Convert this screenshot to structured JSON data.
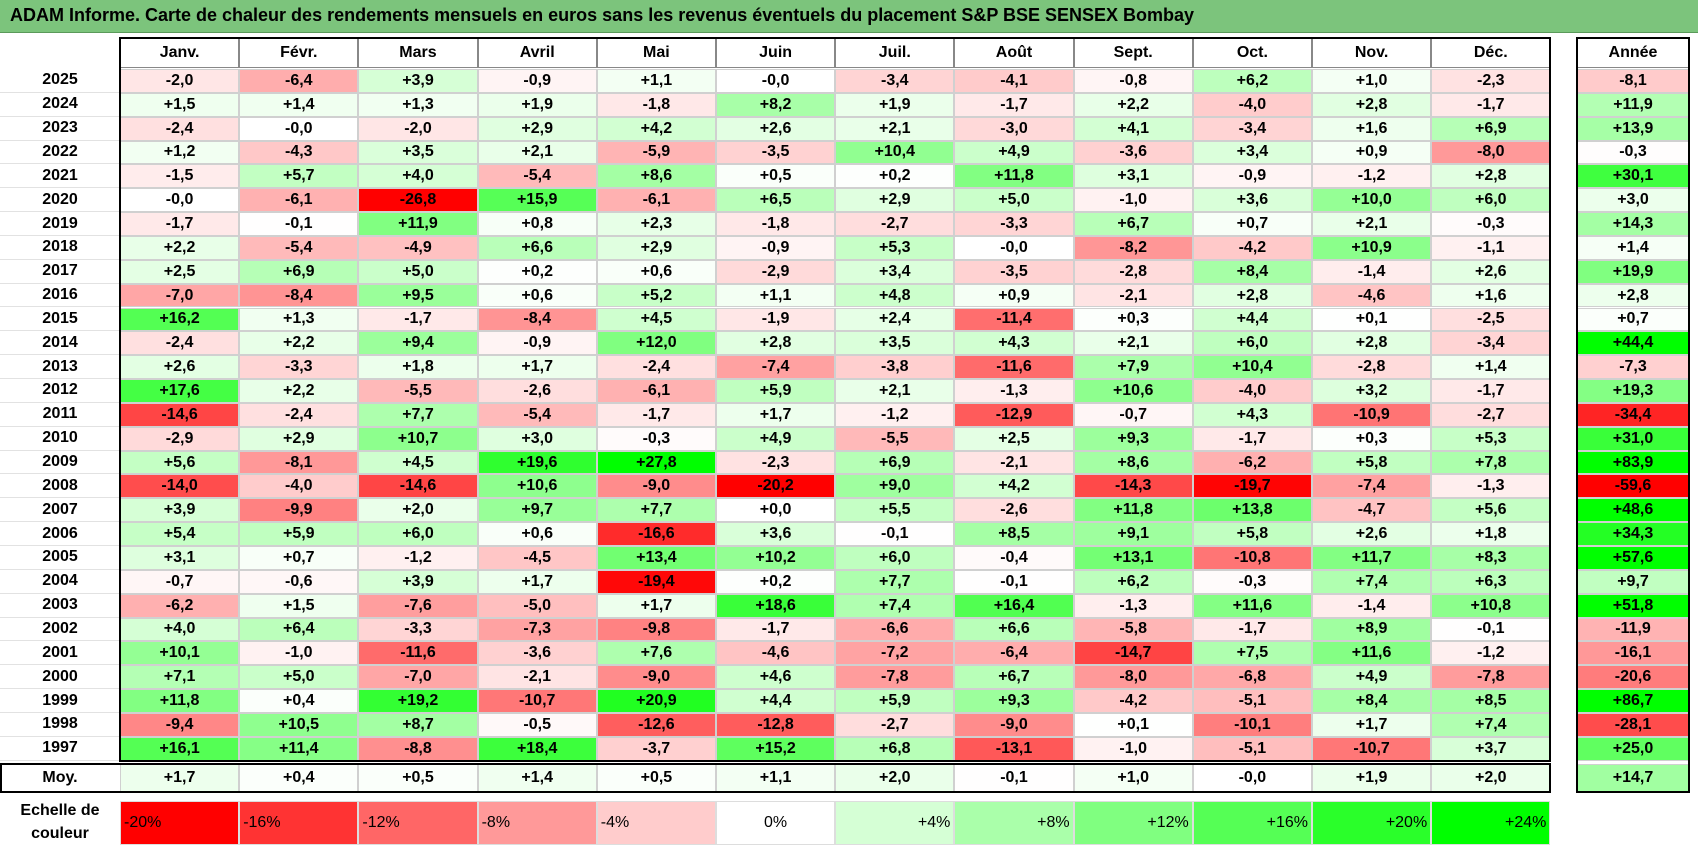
{
  "title": "ADAM Informe. Carte de chaleur des rendements mensuels en euros sans les revenus éventuels du placement S&P BSE SENSEX Bombay",
  "colors": {
    "title_bg": "#7cc47c",
    "negative": "#ff0000",
    "neutral": "#ffffff",
    "positive": "#00ff00"
  },
  "chart_data": {
    "type": "heatmap",
    "title": "ADAM Informe. Carte de chaleur des rendements mensuels en euros sans les revenus éventuels du placement S&P BSE SENSEX Bombay",
    "columns": [
      "Janv.",
      "Févr.",
      "Mars",
      "Avril",
      "Mai",
      "Juin",
      "Juil.",
      "Août",
      "Sept.",
      "Oct.",
      "Nov.",
      "Déc."
    ],
    "year_header": "Année",
    "rows": [
      {
        "year": "2025",
        "months": [
          "-2,0",
          "-6,4",
          "+3,9",
          "-0,9",
          "+1,1",
          "-0,0",
          "-3,4",
          "-4,1",
          "-0,8",
          "+6,2",
          "+1,0",
          "-2,3"
        ],
        "annual": "-8,1"
      },
      {
        "year": "2024",
        "months": [
          "+1,5",
          "+1,4",
          "+1,3",
          "+1,9",
          "-1,8",
          "+8,2",
          "+1,9",
          "-1,7",
          "+2,2",
          "-4,0",
          "+2,8",
          "-1,7"
        ],
        "annual": "+11,9"
      },
      {
        "year": "2023",
        "months": [
          "-2,4",
          "-0,0",
          "-2,0",
          "+2,9",
          "+4,2",
          "+2,6",
          "+2,1",
          "-3,0",
          "+4,1",
          "-3,4",
          "+1,6",
          "+6,9"
        ],
        "annual": "+13,9"
      },
      {
        "year": "2022",
        "months": [
          "+1,2",
          "-4,3",
          "+3,5",
          "+2,1",
          "-5,9",
          "-3,5",
          "+10,4",
          "+4,9",
          "-3,6",
          "+3,4",
          "+0,9",
          "-8,0"
        ],
        "annual": "-0,3"
      },
      {
        "year": "2021",
        "months": [
          "-1,5",
          "+5,7",
          "+4,0",
          "-5,4",
          "+8,6",
          "+0,5",
          "+0,2",
          "+11,8",
          "+3,1",
          "-0,9",
          "-1,2",
          "+2,8"
        ],
        "annual": "+30,1"
      },
      {
        "year": "2020",
        "months": [
          "-0,0",
          "-6,1",
          "-26,8",
          "+15,9",
          "-6,1",
          "+6,5",
          "+2,9",
          "+5,0",
          "-1,0",
          "+3,6",
          "+10,0",
          "+6,0"
        ],
        "annual": "+3,0"
      },
      {
        "year": "2019",
        "months": [
          "-1,7",
          "-0,1",
          "+11,9",
          "+0,8",
          "+2,3",
          "-1,8",
          "-2,7",
          "-3,3",
          "+6,7",
          "+0,7",
          "+2,1",
          "-0,3"
        ],
        "annual": "+14,3"
      },
      {
        "year": "2018",
        "months": [
          "+2,2",
          "-5,4",
          "-4,9",
          "+6,6",
          "+2,9",
          "-0,9",
          "+5,3",
          "-0,0",
          "-8,2",
          "-4,2",
          "+10,9",
          "-1,1"
        ],
        "annual": "+1,4"
      },
      {
        "year": "2017",
        "months": [
          "+2,5",
          "+6,9",
          "+5,0",
          "+0,2",
          "+0,6",
          "-2,9",
          "+3,4",
          "-3,5",
          "-2,8",
          "+8,4",
          "-1,4",
          "+2,6"
        ],
        "annual": "+19,9"
      },
      {
        "year": "2016",
        "months": [
          "-7,0",
          "-8,4",
          "+9,5",
          "+0,6",
          "+5,2",
          "+1,1",
          "+4,8",
          "+0,9",
          "-2,1",
          "+2,8",
          "-4,6",
          "+1,6"
        ],
        "annual": "+2,8"
      },
      {
        "year": "2015",
        "months": [
          "+16,2",
          "+1,3",
          "-1,7",
          "-8,4",
          "+4,5",
          "-1,9",
          "+2,4",
          "-11,4",
          "+0,3",
          "+4,4",
          "+0,1",
          "-2,5"
        ],
        "annual": "+0,7"
      },
      {
        "year": "2014",
        "months": [
          "-2,4",
          "+2,2",
          "+9,4",
          "-0,9",
          "+12,0",
          "+2,8",
          "+3,5",
          "+4,3",
          "+2,1",
          "+6,0",
          "+2,8",
          "-3,4"
        ],
        "annual": "+44,4"
      },
      {
        "year": "2013",
        "months": [
          "+2,6",
          "-3,3",
          "+1,8",
          "+1,7",
          "-2,4",
          "-7,4",
          "-3,8",
          "-11,6",
          "+7,9",
          "+10,4",
          "-2,8",
          "+1,4"
        ],
        "annual": "-7,3"
      },
      {
        "year": "2012",
        "months": [
          "+17,6",
          "+2,2",
          "-5,5",
          "-2,6",
          "-6,1",
          "+5,9",
          "+2,1",
          "-1,3",
          "+10,6",
          "-4,0",
          "+3,2",
          "-1,7"
        ],
        "annual": "+19,3"
      },
      {
        "year": "2011",
        "months": [
          "-14,6",
          "-2,4",
          "+7,7",
          "-5,4",
          "-1,7",
          "+1,7",
          "-1,2",
          "-12,9",
          "-0,7",
          "+4,3",
          "-10,9",
          "-2,7"
        ],
        "annual": "-34,4"
      },
      {
        "year": "2010",
        "months": [
          "-2,9",
          "+2,9",
          "+10,7",
          "+3,0",
          "-0,3",
          "+4,9",
          "-5,5",
          "+2,5",
          "+9,3",
          "-1,7",
          "+0,3",
          "+5,3"
        ],
        "annual": "+31,0"
      },
      {
        "year": "2009",
        "months": [
          "+5,6",
          "-8,1",
          "+4,5",
          "+19,6",
          "+27,8",
          "-2,3",
          "+6,9",
          "-2,1",
          "+8,6",
          "-6,2",
          "+5,8",
          "+7,8"
        ],
        "annual": "+83,9"
      },
      {
        "year": "2008",
        "months": [
          "-14,0",
          "-4,0",
          "-14,6",
          "+10,6",
          "-9,0",
          "-20,2",
          "+9,0",
          "+4,2",
          "-14,3",
          "-19,7",
          "-7,4",
          "-1,3"
        ],
        "annual": "-59,6"
      },
      {
        "year": "2007",
        "months": [
          "+3,9",
          "-9,9",
          "+2,0",
          "+9,7",
          "+7,7",
          "+0,0",
          "+5,5",
          "-2,6",
          "+11,8",
          "+13,8",
          "-4,7",
          "+5,6"
        ],
        "annual": "+48,6"
      },
      {
        "year": "2006",
        "months": [
          "+5,4",
          "+5,9",
          "+6,0",
          "+0,6",
          "-16,6",
          "+3,6",
          "-0,1",
          "+8,5",
          "+9,1",
          "+5,8",
          "+2,6",
          "+1,8"
        ],
        "annual": "+34,3"
      },
      {
        "year": "2005",
        "months": [
          "+3,1",
          "+0,7",
          "-1,2",
          "-4,5",
          "+13,4",
          "+10,2",
          "+6,0",
          "-0,4",
          "+13,1",
          "-10,8",
          "+11,7",
          "+8,3"
        ],
        "annual": "+57,6"
      },
      {
        "year": "2004",
        "months": [
          "-0,7",
          "-0,6",
          "+3,9",
          "+1,7",
          "-19,4",
          "+0,2",
          "+7,7",
          "-0,1",
          "+6,2",
          "-0,3",
          "+7,4",
          "+6,3"
        ],
        "annual": "+9,7"
      },
      {
        "year": "2003",
        "months": [
          "-6,2",
          "+1,5",
          "-7,6",
          "-5,0",
          "+1,7",
          "+18,6",
          "+7,4",
          "+16,4",
          "-1,3",
          "+11,6",
          "-1,4",
          "+10,8"
        ],
        "annual": "+51,8"
      },
      {
        "year": "2002",
        "months": [
          "+4,0",
          "+6,4",
          "-3,3",
          "-7,3",
          "-9,8",
          "-1,7",
          "-6,6",
          "+6,6",
          "-5,8",
          "-1,7",
          "+8,9",
          "-0,1"
        ],
        "annual": "-11,9"
      },
      {
        "year": "2001",
        "months": [
          "+10,1",
          "-1,0",
          "-11,6",
          "-3,6",
          "+7,6",
          "-4,6",
          "-7,2",
          "-6,4",
          "-14,7",
          "+7,5",
          "+11,6",
          "-1,2"
        ],
        "annual": "-16,1"
      },
      {
        "year": "2000",
        "months": [
          "+7,1",
          "+5,0",
          "-7,0",
          "-2,1",
          "-9,0",
          "+4,6",
          "-7,8",
          "+6,7",
          "-8,0",
          "-6,8",
          "+4,9",
          "-7,8"
        ],
        "annual": "-20,6"
      },
      {
        "year": "1999",
        "months": [
          "+11,8",
          "+0,4",
          "+19,2",
          "-10,7",
          "+20,9",
          "+4,4",
          "+5,9",
          "+9,3",
          "-4,2",
          "-5,1",
          "+8,4",
          "+8,5"
        ],
        "annual": "+86,7"
      },
      {
        "year": "1998",
        "months": [
          "-9,4",
          "+10,5",
          "+8,7",
          "-0,5",
          "-12,6",
          "-12,8",
          "-2,7",
          "-9,0",
          "+0,1",
          "-10,1",
          "+1,7",
          "+7,4"
        ],
        "annual": "-28,1"
      },
      {
        "year": "1997",
        "months": [
          "+16,1",
          "+11,4",
          "-8,8",
          "+18,4",
          "-3,7",
          "+15,2",
          "+6,8",
          "-13,1",
          "-1,0",
          "-5,1",
          "-10,7",
          "+3,7"
        ],
        "annual": "+25,0"
      }
    ],
    "average": {
      "label": "Moy.",
      "months": [
        "+1,7",
        "+0,4",
        "+0,5",
        "+1,4",
        "+0,5",
        "+1,1",
        "+2,0",
        "-0,1",
        "+1,0",
        "-0,0",
        "+1,9",
        "+2,0"
      ],
      "annual": "+14,7"
    },
    "scale": {
      "label_line1": "Echelle de",
      "label_line2": "couleur",
      "min": -20,
      "max": 24,
      "steps": [
        "-20%",
        "-16%",
        "-12%",
        "-8%",
        "-4%",
        "0%",
        "+4%",
        "+8%",
        "+12%",
        "+16%",
        "+20%",
        "+24%"
      ]
    }
  }
}
